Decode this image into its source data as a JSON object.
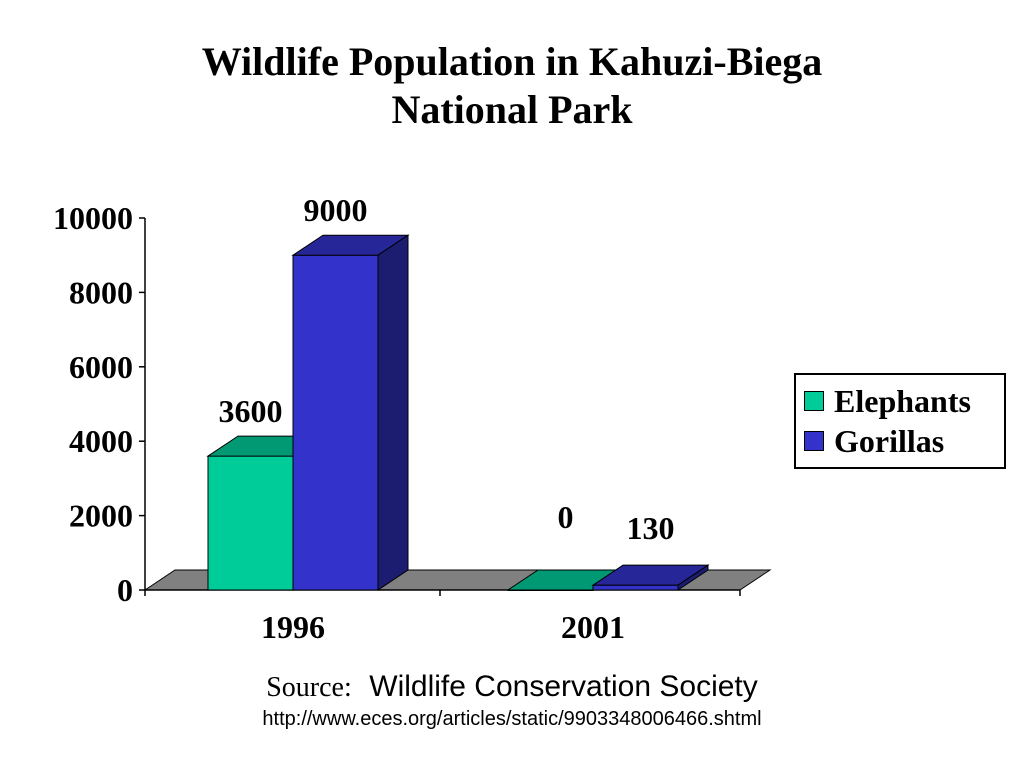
{
  "title_lines": [
    "Wildlife Population in Kahuzi-Biega",
    "National Park"
  ],
  "chart_data": {
    "type": "bar",
    "style": "3d-clustered-column",
    "title": "Wildlife Population in Kahuzi-Biega National Park",
    "categories": [
      "1996",
      "2001"
    ],
    "series": [
      {
        "name": "Elephants",
        "values": [
          3600,
          0
        ],
        "color": "#00CC99"
      },
      {
        "name": "Gorillas",
        "values": [
          9000,
          130
        ],
        "color": "#3333CC"
      }
    ],
    "data_labels": [
      [
        "3600",
        "0"
      ],
      [
        "9000",
        "130"
      ]
    ],
    "yticks": [
      "0",
      "2000",
      "4000",
      "6000",
      "8000",
      "10000"
    ],
    "ylim": [
      0,
      10000
    ],
    "xlabel": "",
    "ylabel": "",
    "grid": false,
    "legend_position": "right",
    "floor_color": "#808080"
  },
  "source": {
    "label": "Source:",
    "org": "Wildlife Conservation Society",
    "url": "http://www.eces.org/articles/static/9903348006466.shtml"
  }
}
